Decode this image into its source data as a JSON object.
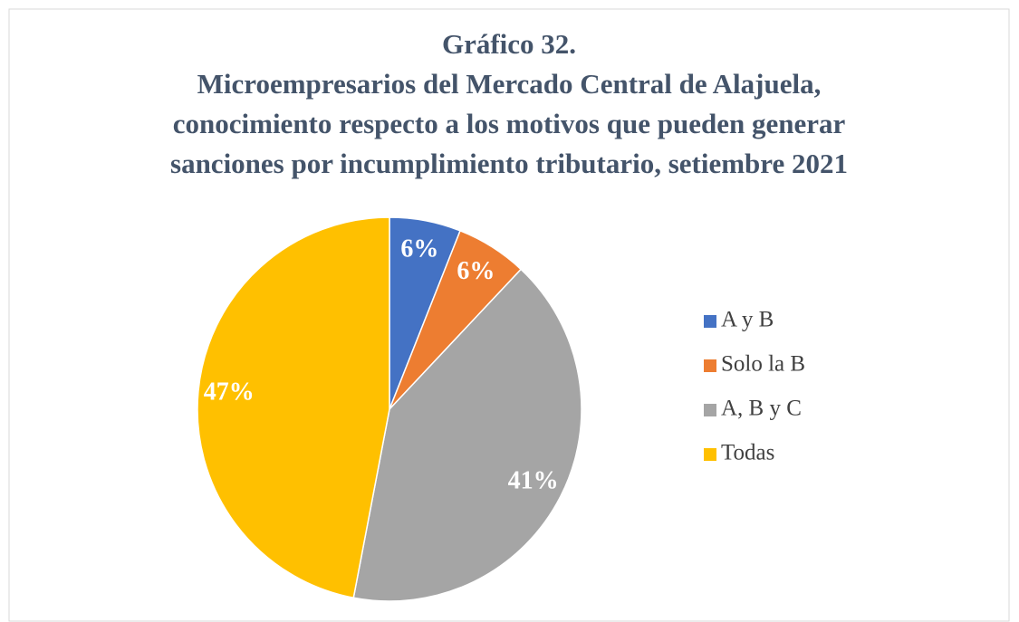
{
  "chart_data": {
    "type": "pie",
    "title": [
      "Gráfico 32.",
      "Microempresarios  del Mercado Central de Alajuela,",
      "conocimiento respecto a los motivos que pueden generar",
      "sanciones por incumplimiento tributario, setiembre 2021"
    ],
    "categories": [
      "A y B",
      "Solo la B",
      "A, B y C",
      "Todas"
    ],
    "values": [
      6,
      6,
      41,
      47
    ],
    "value_labels": [
      "6%",
      "6%",
      "41%",
      "47%"
    ],
    "colors": [
      "#4472c4",
      "#ed7d31",
      "#a5a5a5",
      "#ffc000"
    ],
    "legend": "right"
  }
}
